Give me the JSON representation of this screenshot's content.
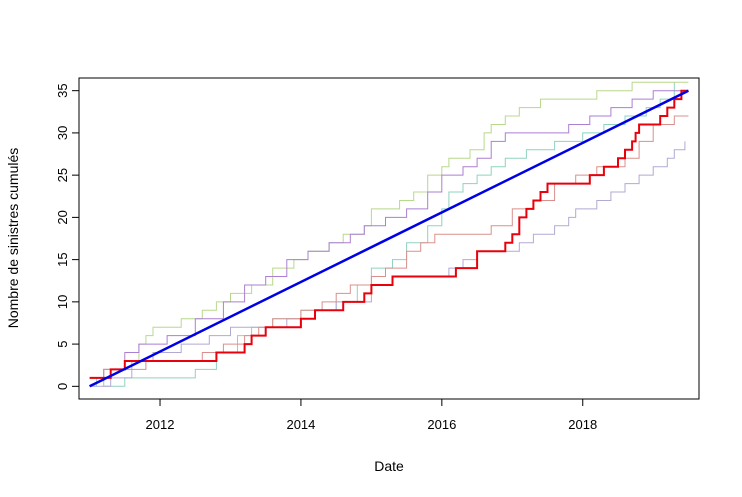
{
  "chart_data": {
    "type": "line",
    "title": "",
    "xlabel": "Date",
    "ylabel": "Nombre de sinistres cumulés",
    "x_unit": "year",
    "xlim": [
      2010.85,
      2019.65
    ],
    "ylim": [
      -1.5,
      36.5
    ],
    "x_ticks": [
      2012,
      2014,
      2016,
      2018
    ],
    "x_tick_labels": [
      "2012",
      "2014",
      "2016",
      "2018"
    ],
    "y_ticks": [
      0,
      5,
      10,
      15,
      20,
      25,
      30,
      35
    ],
    "y_tick_labels": [
      "0",
      "5",
      "10",
      "15",
      "20",
      "25",
      "30",
      "35"
    ],
    "grid": false,
    "legend": "none",
    "series": [
      {
        "style": "step",
        "color": "#8fd3c0",
        "width": 1,
        "points": [
          [
            2011.0,
            0
          ],
          [
            2011.1,
            1
          ],
          [
            2011.2,
            0
          ],
          [
            2011.5,
            1
          ],
          [
            2012.1,
            1
          ],
          [
            2012.5,
            2
          ],
          [
            2012.8,
            4
          ],
          [
            2013.1,
            6
          ],
          [
            2013.3,
            7
          ],
          [
            2013.6,
            8
          ],
          [
            2014.0,
            9
          ],
          [
            2014.5,
            10
          ],
          [
            2014.8,
            12
          ],
          [
            2015.0,
            14
          ],
          [
            2015.3,
            15
          ],
          [
            2015.5,
            17
          ],
          [
            2015.8,
            19
          ],
          [
            2016.0,
            21
          ],
          [
            2016.1,
            23
          ],
          [
            2016.3,
            24
          ],
          [
            2016.5,
            25
          ],
          [
            2016.7,
            26
          ],
          [
            2016.9,
            27
          ],
          [
            2017.2,
            28
          ],
          [
            2017.6,
            29
          ],
          [
            2018.0,
            30
          ],
          [
            2018.3,
            31
          ],
          [
            2018.6,
            32
          ],
          [
            2018.9,
            33
          ],
          [
            2019.1,
            34
          ],
          [
            2019.3,
            36
          ]
        ]
      },
      {
        "style": "step",
        "color": "#b3a9d3",
        "width": 1,
        "points": [
          [
            2011.0,
            0
          ],
          [
            2011.3,
            1
          ],
          [
            2011.6,
            3
          ],
          [
            2011.9,
            4
          ],
          [
            2012.3,
            5
          ],
          [
            2012.7,
            6
          ],
          [
            2013.0,
            7
          ],
          [
            2013.4,
            7
          ],
          [
            2013.8,
            8
          ],
          [
            2014.2,
            9
          ],
          [
            2014.5,
            10
          ],
          [
            2015.0,
            12
          ],
          [
            2015.3,
            13
          ],
          [
            2016.0,
            13
          ],
          [
            2016.1,
            14
          ],
          [
            2016.3,
            15
          ],
          [
            2016.5,
            16
          ],
          [
            2016.9,
            16
          ],
          [
            2017.1,
            17
          ],
          [
            2017.3,
            18
          ],
          [
            2017.6,
            19
          ],
          [
            2017.8,
            20
          ],
          [
            2017.9,
            21
          ],
          [
            2018.2,
            22
          ],
          [
            2018.4,
            23
          ],
          [
            2018.6,
            24
          ],
          [
            2018.8,
            25
          ],
          [
            2019.0,
            26
          ],
          [
            2019.2,
            27
          ],
          [
            2019.3,
            28
          ],
          [
            2019.45,
            29
          ]
        ]
      },
      {
        "style": "step",
        "color": "#b8d88c",
        "width": 1,
        "points": [
          [
            2011.0,
            1
          ],
          [
            2011.2,
            2
          ],
          [
            2011.5,
            3
          ],
          [
            2011.7,
            5
          ],
          [
            2011.8,
            6
          ],
          [
            2011.9,
            7
          ],
          [
            2012.3,
            8
          ],
          [
            2012.6,
            9
          ],
          [
            2012.8,
            10
          ],
          [
            2013.0,
            11
          ],
          [
            2013.3,
            12
          ],
          [
            2013.6,
            14
          ],
          [
            2013.9,
            15
          ],
          [
            2014.1,
            16
          ],
          [
            2014.4,
            17
          ],
          [
            2014.6,
            18
          ],
          [
            2014.9,
            19
          ],
          [
            2015.0,
            21
          ],
          [
            2015.4,
            22
          ],
          [
            2015.6,
            23
          ],
          [
            2015.8,
            25
          ],
          [
            2016.0,
            26
          ],
          [
            2016.1,
            27
          ],
          [
            2016.4,
            28
          ],
          [
            2016.6,
            30
          ],
          [
            2016.7,
            31
          ],
          [
            2016.9,
            32
          ],
          [
            2017.1,
            33
          ],
          [
            2017.4,
            34
          ],
          [
            2017.8,
            34
          ],
          [
            2018.2,
            35
          ],
          [
            2018.6,
            35
          ],
          [
            2018.7,
            36
          ],
          [
            2019.5,
            36
          ]
        ]
      },
      {
        "style": "step",
        "color": "#ab7fd1",
        "width": 1,
        "points": [
          [
            2011.0,
            1
          ],
          [
            2011.2,
            2
          ],
          [
            2011.5,
            4
          ],
          [
            2011.7,
            5
          ],
          [
            2012.1,
            6
          ],
          [
            2012.5,
            8
          ],
          [
            2012.9,
            10
          ],
          [
            2013.2,
            12
          ],
          [
            2013.5,
            13
          ],
          [
            2013.8,
            15
          ],
          [
            2014.1,
            16
          ],
          [
            2014.4,
            17
          ],
          [
            2014.7,
            18
          ],
          [
            2014.9,
            19
          ],
          [
            2015.2,
            20
          ],
          [
            2015.5,
            21
          ],
          [
            2015.8,
            23
          ],
          [
            2016.0,
            25
          ],
          [
            2016.3,
            26
          ],
          [
            2016.5,
            27
          ],
          [
            2016.7,
            29
          ],
          [
            2016.9,
            30
          ],
          [
            2017.4,
            30
          ],
          [
            2017.8,
            31
          ],
          [
            2018.1,
            32
          ],
          [
            2018.4,
            33
          ],
          [
            2018.7,
            34
          ],
          [
            2019.0,
            35
          ],
          [
            2019.5,
            35
          ]
        ]
      },
      {
        "style": "step",
        "color": "#d9908c",
        "width": 1,
        "points": [
          [
            2011.0,
            1
          ],
          [
            2011.2,
            2
          ],
          [
            2011.5,
            2
          ],
          [
            2011.8,
            3
          ],
          [
            2012.2,
            3
          ],
          [
            2012.6,
            4
          ],
          [
            2012.9,
            5
          ],
          [
            2013.2,
            6
          ],
          [
            2013.4,
            7
          ],
          [
            2013.6,
            8
          ],
          [
            2014.0,
            9
          ],
          [
            2014.3,
            10
          ],
          [
            2014.5,
            11
          ],
          [
            2014.7,
            12
          ],
          [
            2015.0,
            13
          ],
          [
            2015.2,
            14
          ],
          [
            2015.5,
            16
          ],
          [
            2015.7,
            17
          ],
          [
            2015.9,
            18
          ],
          [
            2016.2,
            18
          ],
          [
            2016.7,
            19
          ],
          [
            2017.0,
            21
          ],
          [
            2017.3,
            22
          ],
          [
            2017.6,
            24
          ],
          [
            2017.9,
            25
          ],
          [
            2018.2,
            26
          ],
          [
            2018.4,
            26
          ],
          [
            2018.6,
            27
          ],
          [
            2018.8,
            29
          ],
          [
            2019.0,
            31
          ],
          [
            2019.3,
            32
          ],
          [
            2019.5,
            32
          ]
        ]
      },
      {
        "style": "step",
        "color": "#e8000b",
        "width": 2,
        "points": [
          [
            2011.0,
            1
          ],
          [
            2011.1,
            1
          ],
          [
            2011.3,
            2
          ],
          [
            2011.5,
            3
          ],
          [
            2012.7,
            3
          ],
          [
            2012.8,
            4
          ],
          [
            2013.2,
            5
          ],
          [
            2013.3,
            6
          ],
          [
            2013.5,
            7
          ],
          [
            2013.8,
            7
          ],
          [
            2014.0,
            8
          ],
          [
            2014.2,
            9
          ],
          [
            2014.5,
            9
          ],
          [
            2014.6,
            10
          ],
          [
            2014.9,
            11
          ],
          [
            2015.0,
            12
          ],
          [
            2015.3,
            13
          ],
          [
            2015.7,
            13
          ],
          [
            2016.2,
            14
          ],
          [
            2016.5,
            16
          ],
          [
            2016.9,
            17
          ],
          [
            2017.0,
            18
          ],
          [
            2017.1,
            20
          ],
          [
            2017.2,
            21
          ],
          [
            2017.3,
            22
          ],
          [
            2017.4,
            23
          ],
          [
            2017.5,
            24
          ],
          [
            2018.0,
            24
          ],
          [
            2018.1,
            25
          ],
          [
            2018.3,
            26
          ],
          [
            2018.5,
            27
          ],
          [
            2018.6,
            28
          ],
          [
            2018.7,
            29
          ],
          [
            2018.75,
            30
          ],
          [
            2018.8,
            31
          ],
          [
            2019.0,
            31
          ],
          [
            2019.1,
            32
          ],
          [
            2019.2,
            33
          ],
          [
            2019.3,
            34
          ],
          [
            2019.4,
            35
          ],
          [
            2019.5,
            35
          ]
        ]
      },
      {
        "style": "line",
        "color": "#0000e6",
        "width": 2.5,
        "points": [
          [
            2011.0,
            0
          ],
          [
            2019.5,
            35
          ]
        ]
      }
    ]
  }
}
